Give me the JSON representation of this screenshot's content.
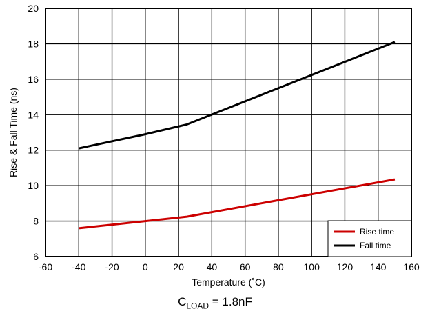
{
  "chart_data": {
    "type": "line",
    "title": "",
    "xlabel": "Temperature (˚C)",
    "ylabel": "Rise & Fall Time (ns)",
    "xlim": [
      -60,
      160
    ],
    "ylim": [
      6,
      20
    ],
    "xticks": [
      -60,
      -40,
      -20,
      0,
      20,
      40,
      60,
      80,
      100,
      120,
      140,
      160
    ],
    "yticks": [
      6,
      8,
      10,
      12,
      14,
      16,
      18,
      20
    ],
    "grid": true,
    "legend": "bottom-right",
    "series": [
      {
        "name": "Rise time",
        "color": "#cc0000",
        "x": [
          -40,
          0,
          25,
          150
        ],
        "y": [
          7.6,
          8.0,
          8.25,
          10.35
        ]
      },
      {
        "name": "Fall time",
        "color": "#000000",
        "x": [
          -40,
          0,
          25,
          150
        ],
        "y": [
          12.1,
          12.9,
          13.45,
          18.1
        ]
      }
    ]
  },
  "caption": {
    "prefix": "C",
    "subscript": "LOAD",
    "suffix": " = 1.8nF"
  }
}
